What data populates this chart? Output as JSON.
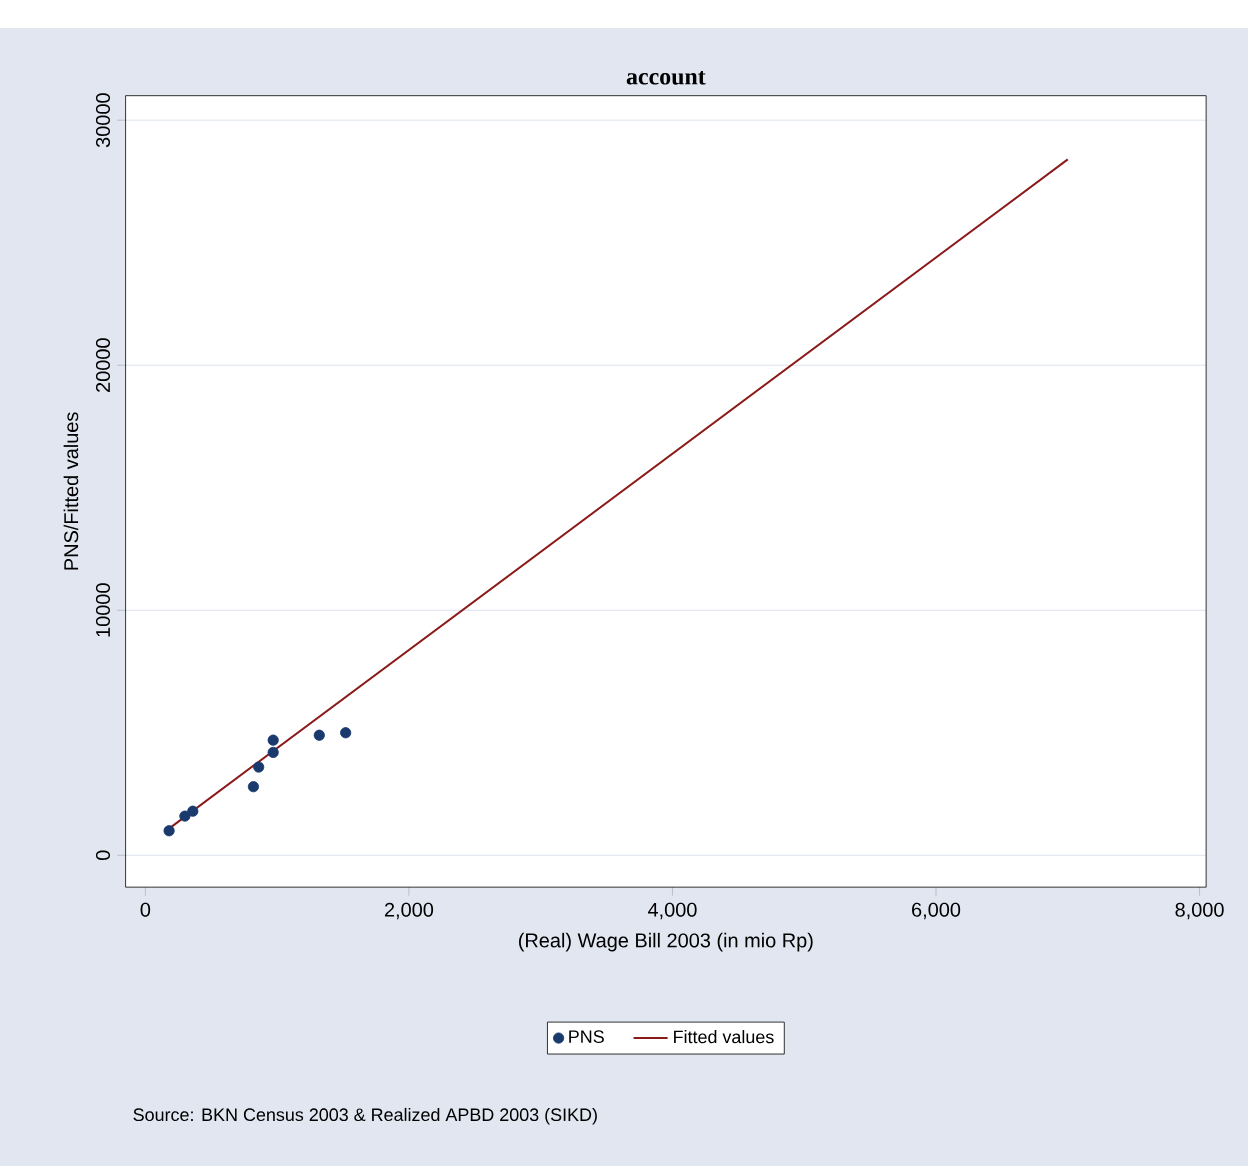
{
  "chart_data": {
    "type": "scatter",
    "title": "account",
    "xlabel": "(Real) Wage Bill 2003 (in mio Rp)",
    "ylabel": "PNS/Fitted values",
    "annotations": [
      "Source: BKN Census 2003 & Realized APBD 2003 (SIKD)"
    ],
    "series": [
      {
        "name": "PNS",
        "color": "#1a3a6e",
        "marker": "circle",
        "x": [
          180,
          300,
          360,
          820,
          860,
          970,
          970,
          1320,
          1520
        ],
        "values": [
          1000,
          1600,
          1800,
          2800,
          3600,
          4200,
          4700,
          4900,
          5000
        ]
      },
      {
        "name": "Fitted values",
        "type": "line",
        "color": "#8b1a1a",
        "marker": "none",
        "x": [
          182,
          7000
        ],
        "values": [
          1100,
          28400
        ]
      }
    ],
    "xlim": [
      -150,
      8050
    ],
    "ylim": [
      -1300,
      31000
    ],
    "xticks": [
      {
        "value": 0,
        "label": "0"
      },
      {
        "value": 2000,
        "label": "2,000"
      },
      {
        "value": 4000,
        "label": "4,000"
      },
      {
        "value": 6000,
        "label": "6,000"
      },
      {
        "value": 8000,
        "label": "8,000"
      }
    ],
    "yticks": [
      0,
      10000,
      20000,
      30000
    ],
    "grid": "y",
    "legend": "bottom"
  }
}
